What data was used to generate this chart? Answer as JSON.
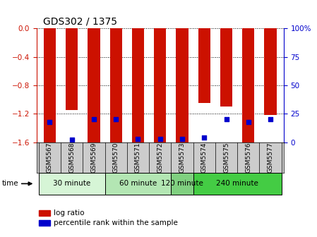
{
  "title": "GDS302 / 1375",
  "samples": [
    "GSM5567",
    "GSM5568",
    "GSM5569",
    "GSM5570",
    "GSM5571",
    "GSM5572",
    "GSM5573",
    "GSM5574",
    "GSM5575",
    "GSM5576",
    "GSM5577"
  ],
  "log_ratio": [
    -1.6,
    -1.15,
    -1.6,
    -1.6,
    -1.6,
    -1.6,
    -1.6,
    -1.05,
    -1.1,
    -1.6,
    -1.22
  ],
  "percentile": [
    18,
    2,
    20,
    20,
    3,
    3,
    3,
    4,
    20,
    18,
    20
  ],
  "bar_color": "#cc1100",
  "dot_color": "#0000cc",
  "ylim_min": -1.6,
  "ylim_max": 0.0,
  "yticks": [
    0,
    -0.4,
    -0.8,
    -1.2,
    -1.6
  ],
  "y2ticks": [
    0,
    25,
    50,
    75,
    100
  ],
  "y2labels": [
    "0",
    "25",
    "50",
    "75",
    "100%"
  ],
  "groups": [
    {
      "label": "30 minute",
      "start": 0,
      "end": 3,
      "color": "#d6f5d6"
    },
    {
      "label": "60 minute",
      "start": 3,
      "end": 6,
      "color": "#b3e6b3"
    },
    {
      "label": "120 minute",
      "start": 6,
      "end": 7,
      "color": "#80d080"
    },
    {
      "label": "240 minute",
      "start": 7,
      "end": 11,
      "color": "#44cc44"
    }
  ],
  "time_label": "time",
  "legend_log": "log ratio",
  "legend_pct": "percentile rank within the sample",
  "bar_width": 0.55,
  "tick_label_color_left": "#cc1100",
  "tick_label_color_right": "#0000cc",
  "label_bg_color": "#cccccc",
  "spine_color": "#000000"
}
